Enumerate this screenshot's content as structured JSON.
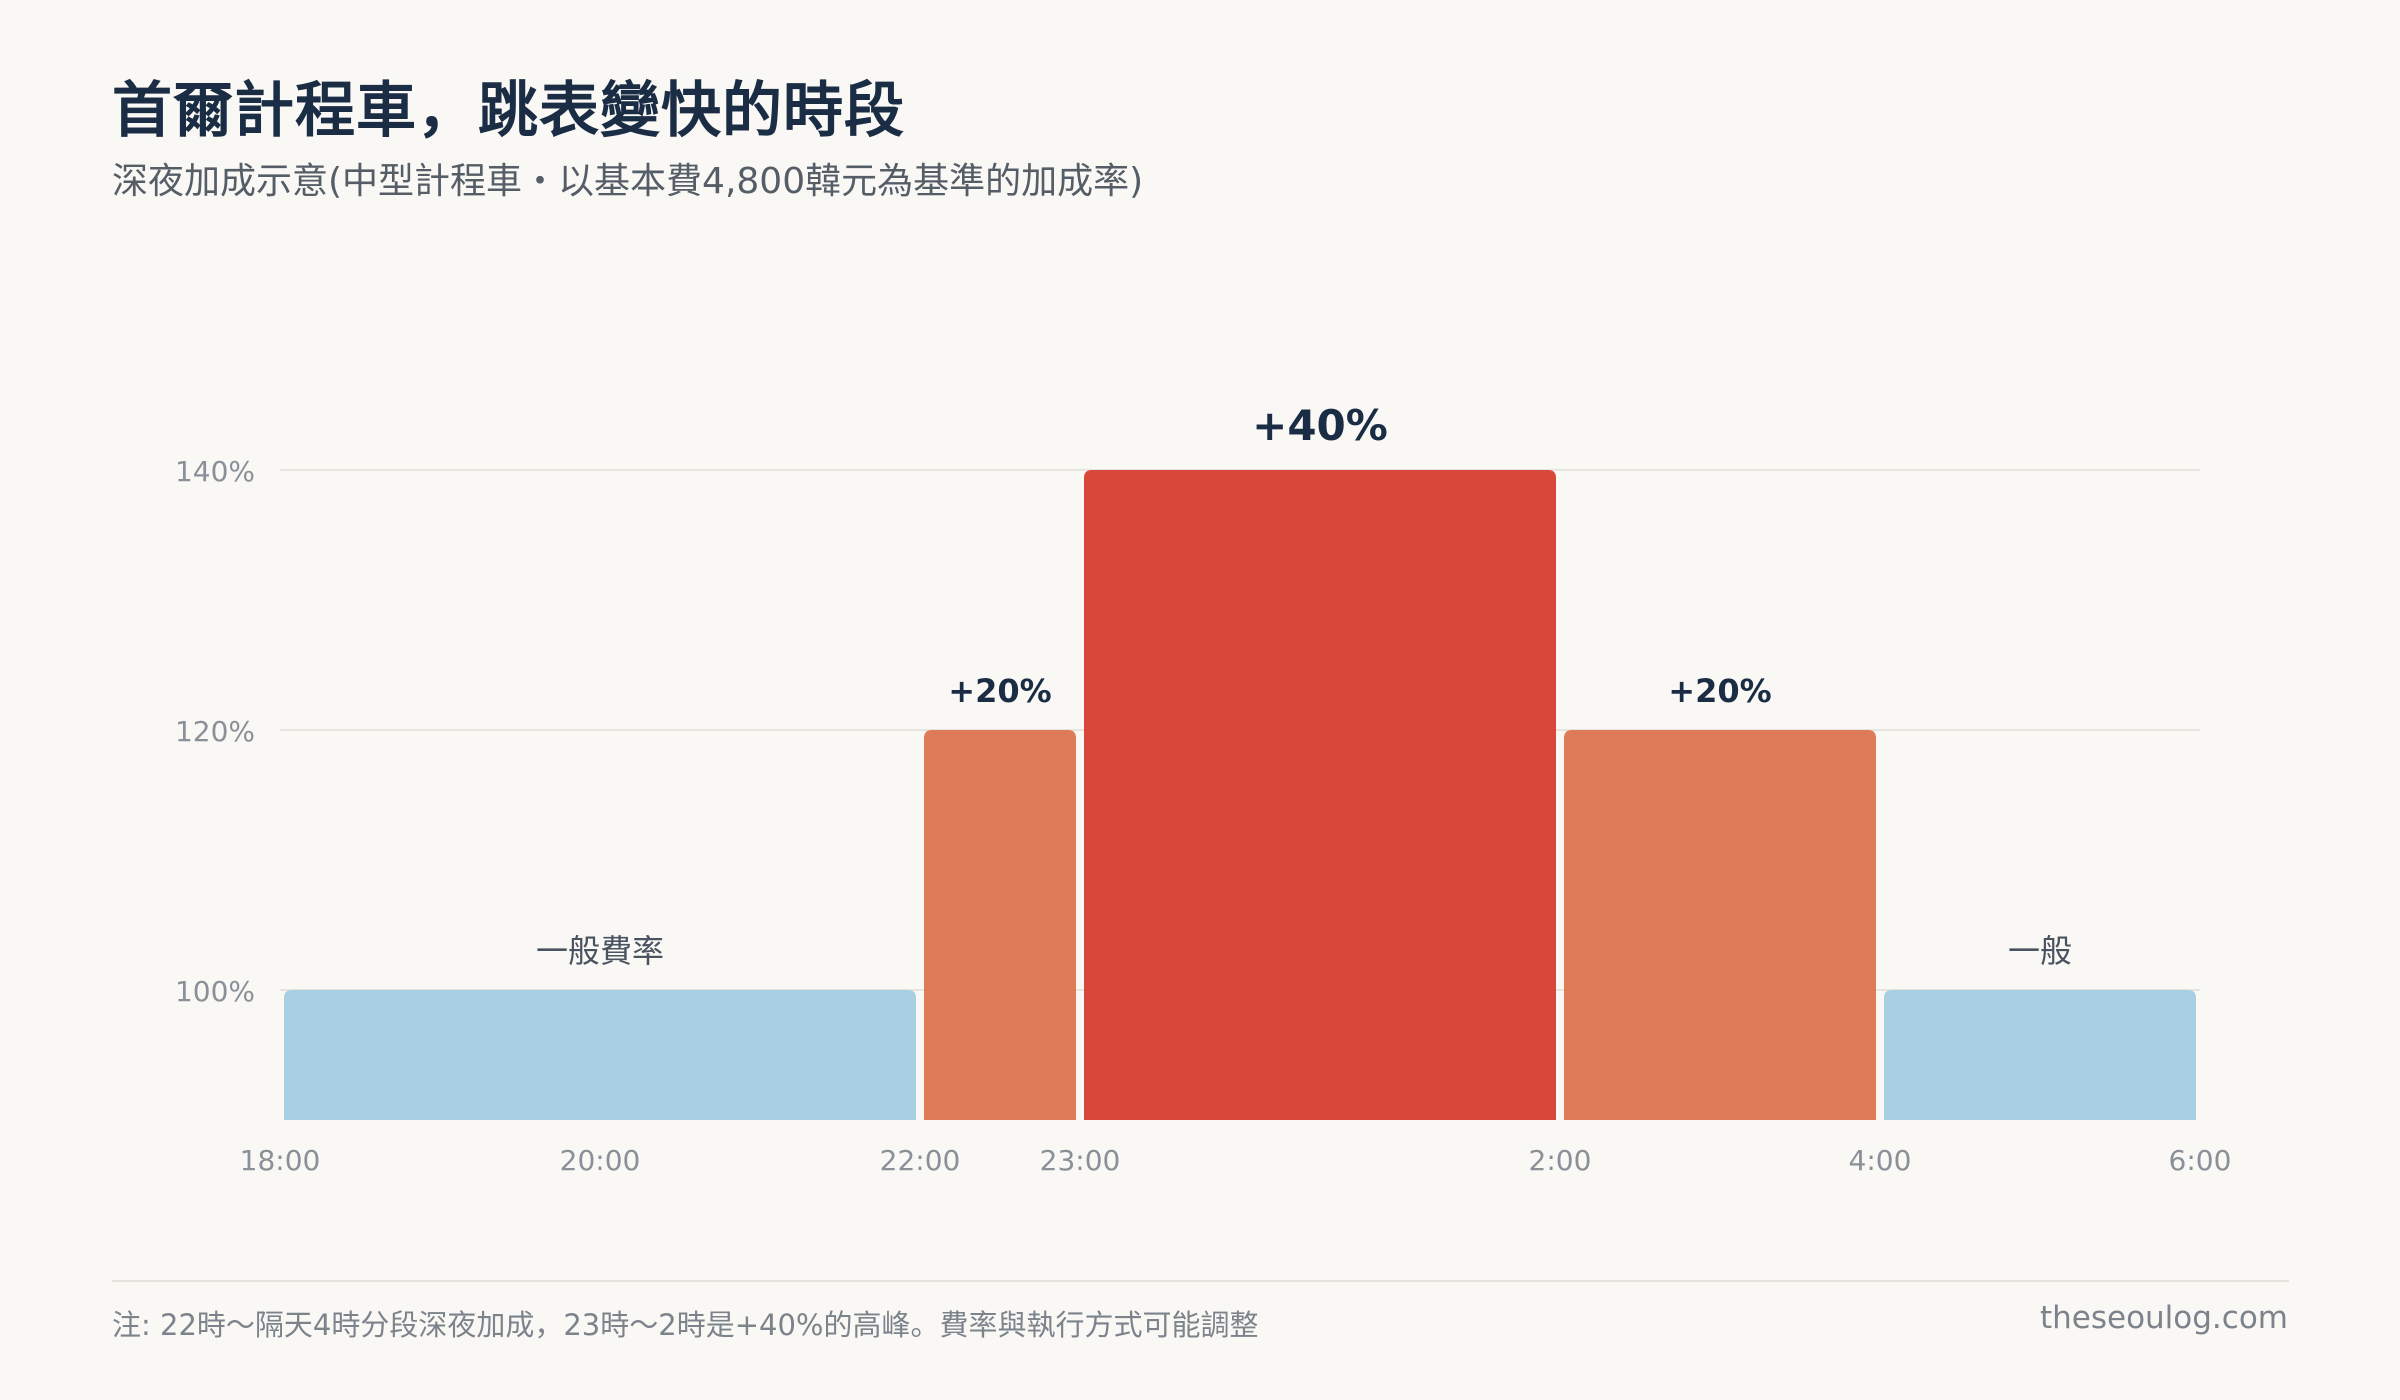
{
  "title": "首爾計程車，跳表變快的時段",
  "subtitle": "深夜加成示意(中型計程車・以基本費4,800韓元為基準的加成率)",
  "footnote": "注: 22時～隔天4時分段深夜加成，23時～2時是+40%的高峰。費率與執行方式可能調整",
  "source": "theseoulog.com",
  "chart_data": {
    "type": "bar",
    "xlabel": "",
    "ylabel": "",
    "x_ticks": [
      "18:00",
      "20:00",
      "22:00",
      "23:00",
      "2:00",
      "4:00",
      "6:00"
    ],
    "y_ticks": [
      "100%",
      "120%",
      "140%"
    ],
    "ylim": [
      90,
      140
    ],
    "grid": true,
    "segments": [
      {
        "start": "18:00",
        "end": "22:00",
        "value": 100,
        "label": "一般費率",
        "color": "#a8cfe2"
      },
      {
        "start": "22:00",
        "end": "23:00",
        "value": 120,
        "label": "+20%",
        "color": "#e07b5a"
      },
      {
        "start": "23:00",
        "end": "2:00",
        "value": 140,
        "label": "+40%",
        "color": "#d9473a"
      },
      {
        "start": "2:00",
        "end": "4:00",
        "value": 120,
        "label": "+20%",
        "color": "#e07b5a"
      },
      {
        "start": "4:00",
        "end": "6:00",
        "value": 100,
        "label": "一般",
        "color": "#a8cfe2"
      }
    ]
  }
}
